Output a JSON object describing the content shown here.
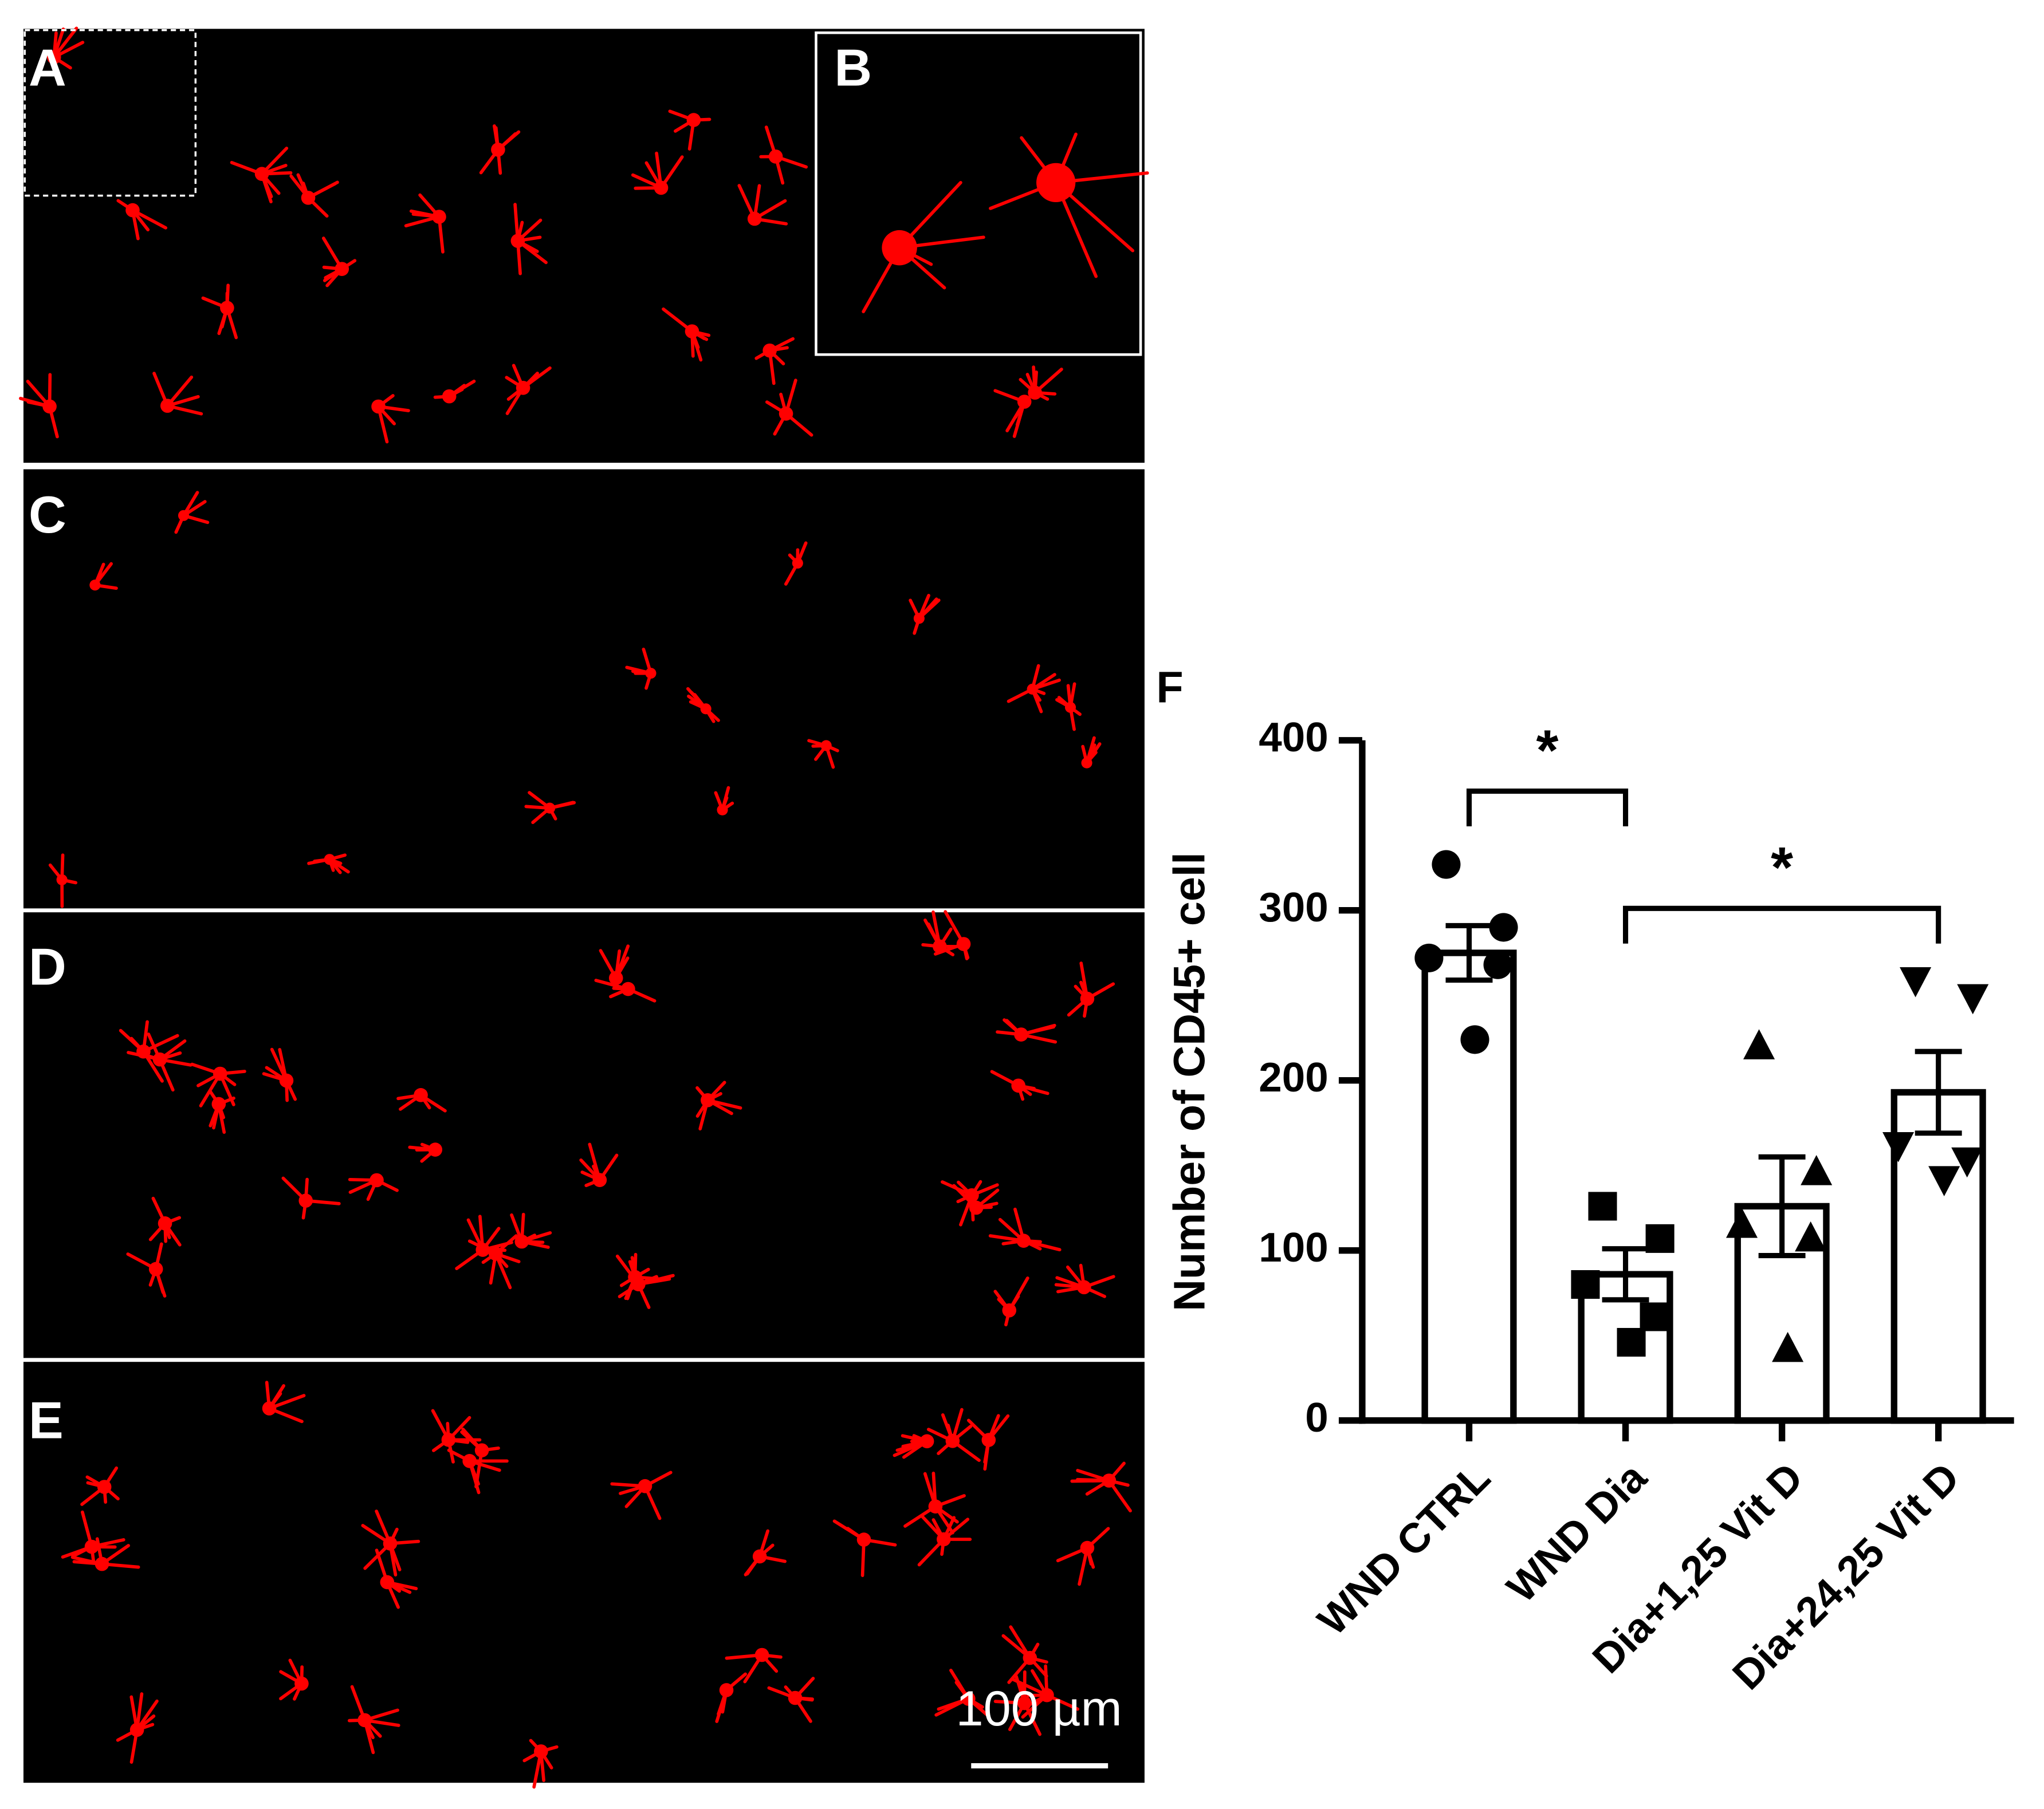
{
  "panels": {
    "labels": [
      "A",
      "B",
      "C",
      "D",
      "E"
    ],
    "scale_bar": "100 µm"
  },
  "chart_data": {
    "type": "bar",
    "panel_label": "F",
    "ylabel": "Number of CD45+ cell",
    "categories": [
      "WND CTRL",
      "WND Dia",
      "Dia+1,25 Vit D",
      "Dia+24,25 Vit D"
    ],
    "values": [
      275,
      86,
      126,
      193
    ],
    "errors": [
      16,
      15,
      29,
      24
    ],
    "points": [
      [
        327,
        290,
        272,
        268,
        224
      ],
      [
        126,
        107,
        80,
        61,
        46
      ],
      [
        220,
        146,
        115,
        107,
        42
      ],
      [
        259,
        249,
        162,
        153,
        142
      ]
    ],
    "markers": [
      "circle",
      "square",
      "triangle",
      "triangle-down"
    ],
    "color": "#ffffff",
    "ylim": [
      0,
      400
    ],
    "yticks": [
      0,
      100,
      200,
      300,
      400
    ],
    "significance": [
      {
        "from": 0,
        "to": 1,
        "label": "*"
      },
      {
        "from": 1,
        "to": 3,
        "label": "*"
      }
    ]
  }
}
